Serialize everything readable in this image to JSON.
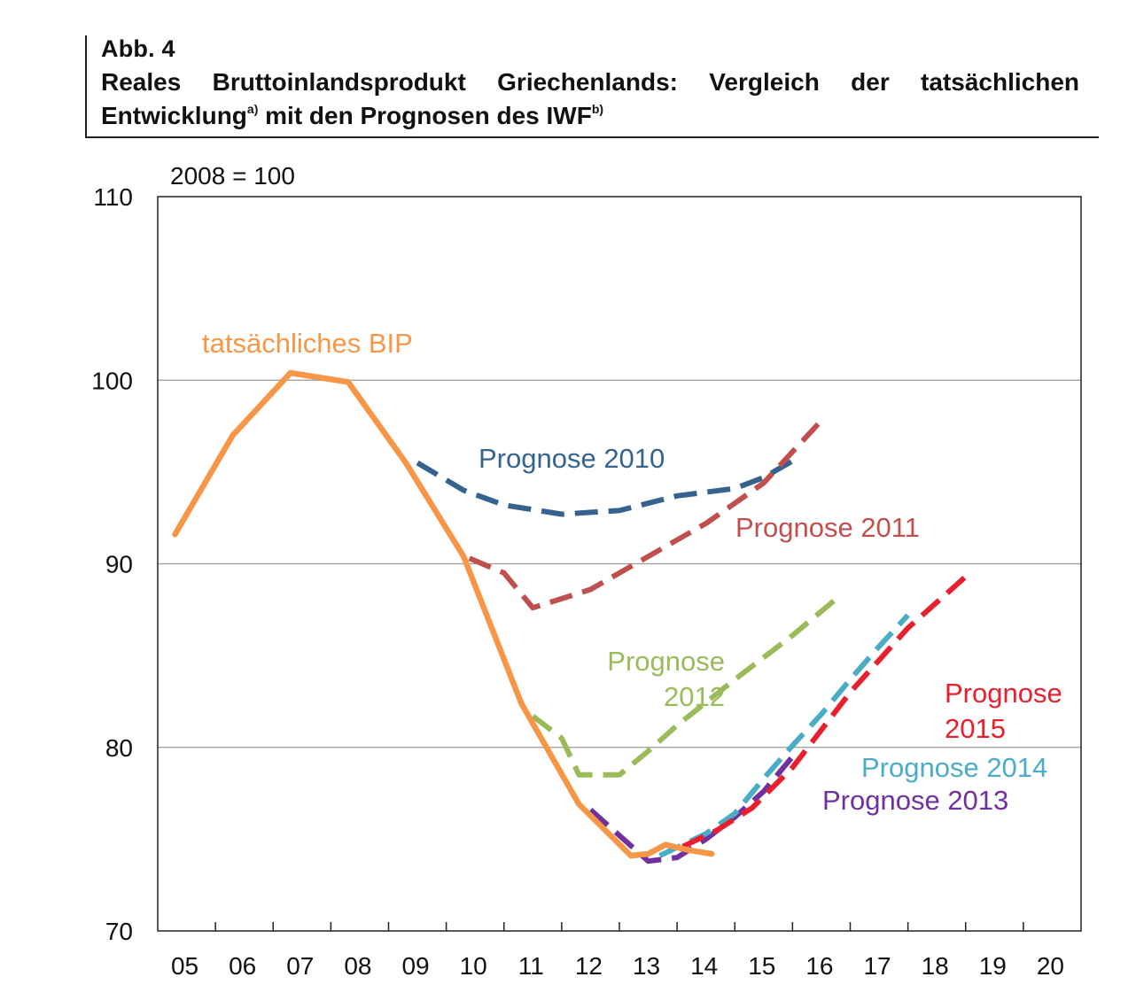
{
  "header": {
    "figure_number": "Abb. 4",
    "title_main": "Reales Bruttoinlandsprodukt Griechenlands: Vergleich der tatsächlichen Entwicklung",
    "footnote_a": "a)",
    "title_mid": " mit den Prognosen des IWF",
    "footnote_b": "b)"
  },
  "chart_data": {
    "type": "line",
    "unit_label": "2008 = 100",
    "ylim": [
      70,
      110
    ],
    "y_ticks": [
      70,
      80,
      90,
      100,
      110
    ],
    "xlim": [
      2004.5,
      2020.5
    ],
    "x_ticks": [
      "05",
      "06",
      "07",
      "08",
      "09",
      "10",
      "11",
      "12",
      "13",
      "14",
      "15",
      "16",
      "17",
      "18",
      "19",
      "20"
    ],
    "grid": "horizontal",
    "series": [
      {
        "name": "Prognose 2010",
        "label_lines": [
          "Prognose 2010"
        ],
        "color": "#35628F",
        "dashed": true,
        "points": [
          [
            2009,
            95.5
          ],
          [
            2009.8,
            94
          ],
          [
            2010.5,
            93.2
          ],
          [
            2011.5,
            92.7
          ],
          [
            2012.5,
            92.9
          ],
          [
            2013.5,
            93.7
          ],
          [
            2014.5,
            94.1
          ],
          [
            2015,
            94.7
          ],
          [
            2015.5,
            95.6
          ]
        ]
      },
      {
        "name": "Prognose 2011",
        "label_lines": [
          "Prognose 2011"
        ],
        "color": "#C0504D",
        "dashed": true,
        "points": [
          [
            2009.9,
            90.3
          ],
          [
            2010.5,
            89.5
          ],
          [
            2011,
            87.6
          ],
          [
            2012,
            88.6
          ],
          [
            2013,
            90.4
          ],
          [
            2014,
            92.2
          ],
          [
            2015,
            94.4
          ],
          [
            2016,
            97.8
          ]
        ]
      },
      {
        "name": "Prognose 2012",
        "label_lines": [
          "Prognose",
          "2012"
        ],
        "color": "#9BBB59",
        "dashed": true,
        "points": [
          [
            2011,
            81.7
          ],
          [
            2011.5,
            80.5
          ],
          [
            2011.8,
            78.5
          ],
          [
            2012.5,
            78.5
          ],
          [
            2013,
            79.8
          ],
          [
            2013.5,
            81.2
          ],
          [
            2014.5,
            83.7
          ],
          [
            2015.5,
            86.1
          ],
          [
            2016.3,
            88.2
          ]
        ]
      },
      {
        "name": "Prognose 2013",
        "label_lines": [
          "Prognose 2013"
        ],
        "color": "#7030A0",
        "dashed": true,
        "points": [
          [
            2012,
            76.6
          ],
          [
            2012.5,
            75.2
          ],
          [
            2013,
            73.8
          ],
          [
            2013.5,
            74
          ],
          [
            2014,
            75
          ],
          [
            2014.5,
            76.2
          ],
          [
            2015,
            77.6
          ],
          [
            2015.5,
            79.5
          ]
        ]
      },
      {
        "name": "Prognose 2014",
        "label_lines": [
          "Prognose 2014"
        ],
        "color": "#4BACC6",
        "dashed": true,
        "points": [
          [
            2013.2,
            74.1
          ],
          [
            2013.6,
            74.7
          ],
          [
            2014,
            75.3
          ],
          [
            2014.5,
            76.4
          ],
          [
            2015,
            78.3
          ],
          [
            2015.5,
            80.1
          ],
          [
            2016,
            81.8
          ],
          [
            2016.5,
            83.7
          ],
          [
            2017,
            85.5
          ],
          [
            2017.5,
            87.2
          ]
        ]
      },
      {
        "name": "Prognose 2015",
        "label_lines": [
          "Prognose",
          "2015"
        ],
        "color": "#E8202E",
        "dashed": true,
        "points": [
          [
            2013.6,
            74.6
          ],
          [
            2014.2,
            75.5
          ],
          [
            2014.8,
            76.7
          ],
          [
            2015.5,
            78.9
          ],
          [
            2016.5,
            83
          ],
          [
            2017.5,
            86.5
          ],
          [
            2018.5,
            89.3
          ]
        ]
      },
      {
        "name": "tatsächliches BIP",
        "label_lines": [
          "tatsächliches BIP"
        ],
        "color": "#F79646",
        "dashed": false,
        "points": [
          [
            2004.8,
            91.6
          ],
          [
            2005.8,
            97
          ],
          [
            2006.8,
            100.4
          ],
          [
            2007.8,
            99.9
          ],
          [
            2008.8,
            95.5
          ],
          [
            2009.8,
            90.4
          ],
          [
            2010.8,
            82.4
          ],
          [
            2011.8,
            76.9
          ],
          [
            2012.7,
            74.1
          ],
          [
            2013,
            74.2
          ],
          [
            2013.3,
            74.7
          ],
          [
            2013.7,
            74.4
          ],
          [
            2014.1,
            74.2
          ]
        ]
      }
    ]
  }
}
